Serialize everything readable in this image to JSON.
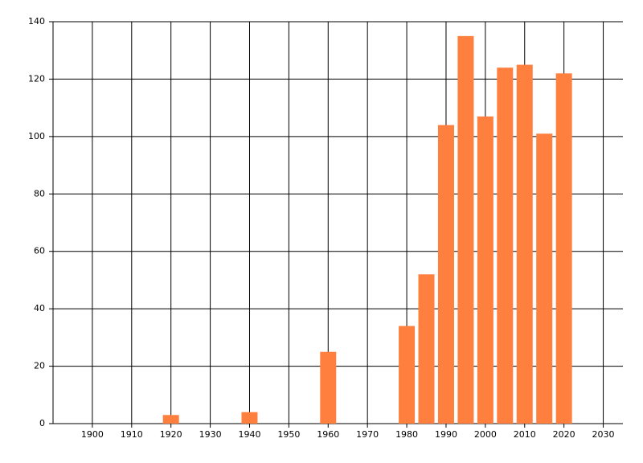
{
  "chart_data": {
    "type": "bar",
    "x": [
      1920,
      1940,
      1960,
      1980,
      1985,
      1990,
      1995,
      2000,
      2005,
      2010,
      2015,
      2020
    ],
    "values": [
      3,
      4,
      25,
      34,
      52,
      104,
      135,
      107,
      124,
      125,
      101,
      122
    ],
    "color": "#ff7f3f",
    "xlim": [
      1890,
      2035
    ],
    "xticks": [
      1900,
      1910,
      1920,
      1930,
      1940,
      1950,
      1960,
      1970,
      1980,
      1990,
      2000,
      2010,
      2020,
      2030
    ],
    "ylim": [
      0,
      140
    ],
    "yticks": [
      0,
      20,
      40,
      60,
      80,
      100,
      120,
      140
    ],
    "grid": true
  }
}
